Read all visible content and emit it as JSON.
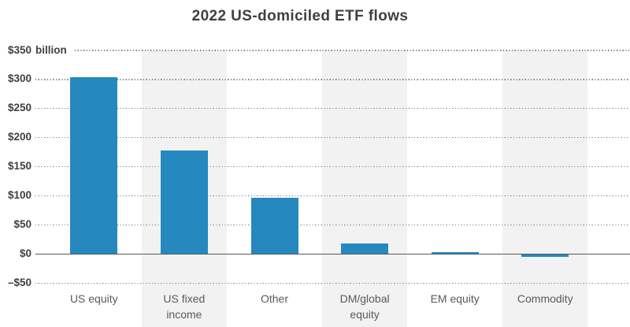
{
  "chart_data": {
    "type": "bar",
    "title": "2022 US-domiciled ETF flows",
    "unit": "USD billions",
    "categories": [
      "US equity",
      "US fixed income",
      "Other",
      "DM/global equity",
      "EM equity",
      "Commodity"
    ],
    "values": [
      304,
      178,
      97,
      18,
      4,
      -5
    ],
    "xlabel": "",
    "ylabel": "$ billion",
    "ylim": [
      -50,
      350
    ],
    "y_ticks": [
      {
        "value": 350,
        "label": "$350",
        "suffix": "billion"
      },
      {
        "value": 300,
        "label": "$300",
        "suffix": ""
      },
      {
        "value": 250,
        "label": "$250",
        "suffix": ""
      },
      {
        "value": 200,
        "label": "$200",
        "suffix": ""
      },
      {
        "value": 150,
        "label": "$150",
        "suffix": ""
      },
      {
        "value": 100,
        "label": "$100",
        "suffix": ""
      },
      {
        "value": 50,
        "label": "$50",
        "suffix": ""
      },
      {
        "value": 0,
        "label": "$0",
        "suffix": ""
      },
      {
        "value": -50,
        "label": "–$50",
        "suffix": ""
      }
    ],
    "grid": "horizontal-dotted",
    "legend": "none",
    "background_bands": "alternating columns on categories 2, 4, 6"
  },
  "colors": {
    "bar": "#2589bf",
    "band": "#f2f2f2",
    "axis_line": "#595959",
    "gridline": "#7a7a7a",
    "title_text": "#404040",
    "ytick_text": "#404040",
    "xtick_text": "#595959",
    "background": "#ffffff"
  }
}
